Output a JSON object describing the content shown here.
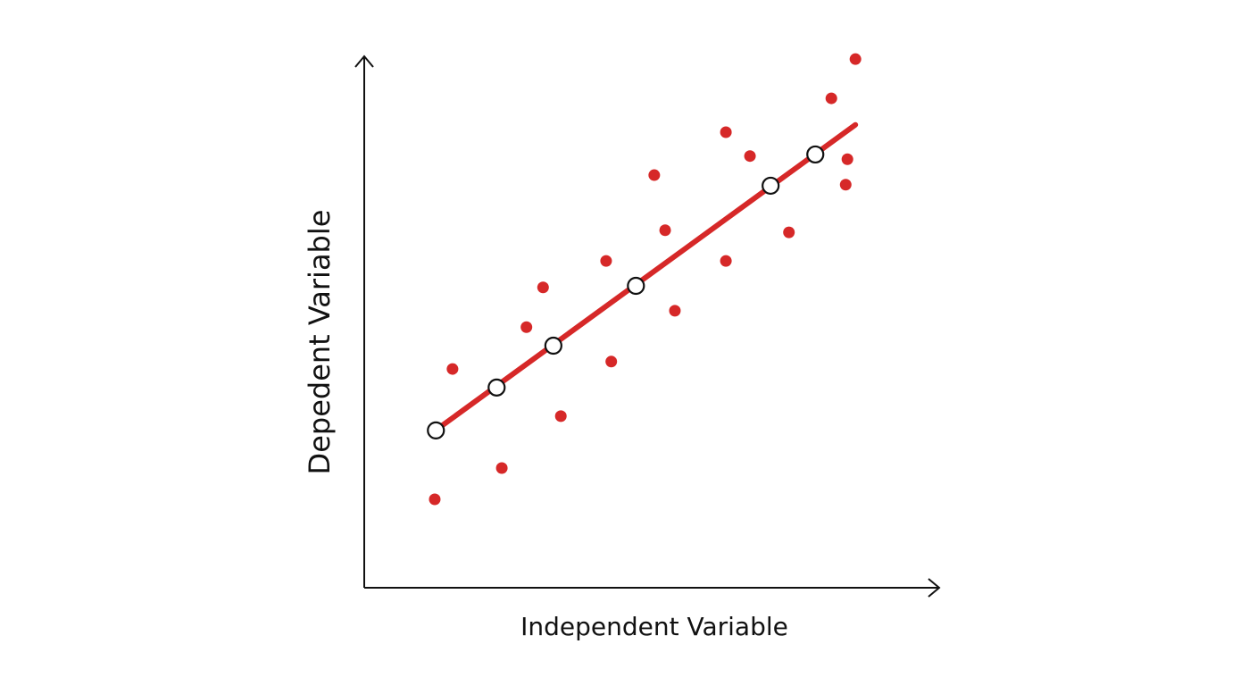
{
  "chart_data": {
    "type": "scatter",
    "x_label": "Independent Variable",
    "y_label": "Depedent Variable",
    "xlim": [
      0,
      100
    ],
    "ylim": [
      0,
      100
    ],
    "series": [
      {
        "type": "scatter",
        "color": "#d62828",
        "x": [
          12.3,
          15.4,
          24.0,
          28.3,
          31.2,
          34.3,
          42.2,
          43.1,
          50.6,
          52.5,
          54.2,
          63.1,
          63.1,
          67.3,
          74.1,
          81.5,
          84.0,
          84.3,
          85.7
        ],
        "values": [
          16.7,
          41.3,
          22.6,
          49.2,
          56.7,
          32.4,
          61.7,
          42.7,
          77.9,
          67.5,
          52.3,
          86.0,
          61.7,
          81.5,
          67.1,
          92.4,
          76.1,
          80.9,
          99.8
        ]
      },
      {
        "type": "line",
        "color": "#d62828",
        "x": [
          12.8,
          85.7
        ],
        "values": [
          30.0,
          87.4
        ]
      },
      {
        "type": "hollow",
        "color": "#111111",
        "x": [
          12.5,
          23.1,
          33.0,
          47.4,
          70.9,
          78.7
        ],
        "values": [
          29.7,
          37.8,
          45.7,
          57.0,
          75.9,
          81.8
        ]
      }
    ]
  }
}
